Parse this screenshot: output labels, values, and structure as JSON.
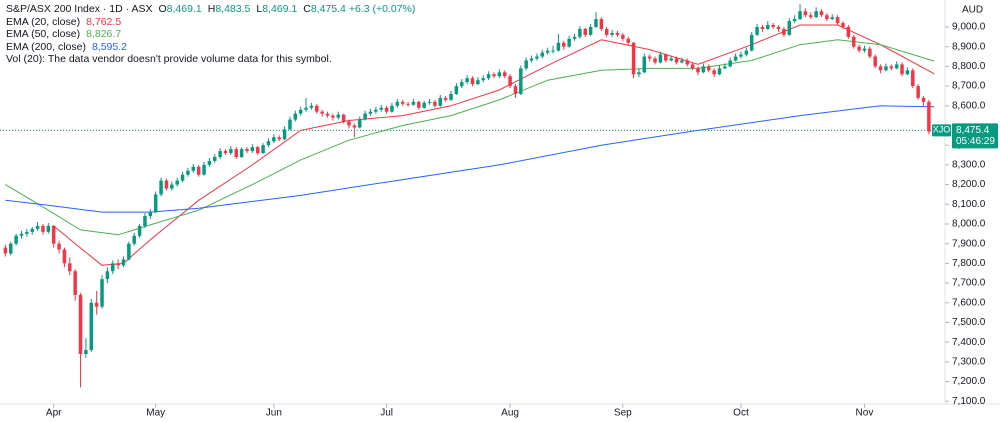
{
  "chart_data": {
    "type": "candlestick",
    "header": {
      "symbol": "S&P/ASX 200 Index · 1D · ASX",
      "ohlc": [
        {
          "key": "O",
          "value": "8,469.1"
        },
        {
          "key": "H",
          "value": "8,483.5"
        },
        {
          "key": "L",
          "value": "8,469.1"
        },
        {
          "key": "C",
          "value": "8,475.4"
        }
      ],
      "change": "+6.3 (+0.07%)"
    },
    "volume_note": "Vol (20): The data vendor doesn't provide volume data for this symbol.",
    "currency": "AUD",
    "symbol_tag": "XJO",
    "price_label": "8,475.4",
    "countdown": "05:46:29",
    "up_color": "#089981",
    "down_color": "#f23645",
    "ohlc": [
      [
        7880,
        7895,
        7835,
        7850
      ],
      [
        7850,
        7910,
        7840,
        7900
      ],
      [
        7900,
        7950,
        7890,
        7940
      ],
      [
        7940,
        7965,
        7925,
        7950
      ],
      [
        7950,
        7975,
        7935,
        7960
      ],
      [
        7960,
        7985,
        7945,
        7975
      ],
      [
        7975,
        8010,
        7965,
        7990
      ],
      [
        7990,
        8000,
        7945,
        7960
      ],
      [
        7960,
        8005,
        7950,
        7990
      ],
      [
        7990,
        7995,
        7880,
        7900
      ],
      [
        7900,
        7915,
        7850,
        7870
      ],
      [
        7870,
        7880,
        7780,
        7800
      ],
      [
        7800,
        7830,
        7740,
        7760
      ],
      [
        7760,
        7770,
        7610,
        7640
      ],
      [
        7640,
        7650,
        7170,
        7340
      ],
      [
        7340,
        7420,
        7320,
        7360
      ],
      [
        7360,
        7620,
        7350,
        7600
      ],
      [
        7600,
        7660,
        7540,
        7580
      ],
      [
        7580,
        7740,
        7570,
        7720
      ],
      [
        7720,
        7780,
        7700,
        7760
      ],
      [
        7760,
        7815,
        7745,
        7800
      ],
      [
        7800,
        7820,
        7770,
        7790
      ],
      [
        7790,
        7835,
        7780,
        7820
      ],
      [
        7820,
        7910,
        7815,
        7900
      ],
      [
        7900,
        7955,
        7890,
        7940
      ],
      [
        7940,
        8000,
        7930,
        7990
      ],
      [
        7990,
        8055,
        7980,
        8040
      ],
      [
        8040,
        8075,
        8025,
        8060
      ],
      [
        8060,
        8165,
        8055,
        8150
      ],
      [
        8150,
        8235,
        8140,
        8220
      ],
      [
        8220,
        8230,
        8170,
        8180
      ],
      [
        8180,
        8215,
        8170,
        8200
      ],
      [
        8200,
        8235,
        8190,
        8220
      ],
      [
        8220,
        8265,
        8210,
        8250
      ],
      [
        8250,
        8285,
        8240,
        8270
      ],
      [
        8270,
        8305,
        8260,
        8290
      ],
      [
        8290,
        8300,
        8240,
        8250
      ],
      [
        8250,
        8315,
        8245,
        8300
      ],
      [
        8300,
        8335,
        8290,
        8320
      ],
      [
        8320,
        8355,
        8310,
        8340
      ],
      [
        8340,
        8385,
        8330,
        8370
      ],
      [
        8370,
        8380,
        8350,
        8360
      ],
      [
        8360,
        8395,
        8350,
        8380
      ],
      [
        8380,
        8390,
        8330,
        8340
      ],
      [
        8340,
        8390,
        8335,
        8380
      ],
      [
        8380,
        8390,
        8360,
        8370
      ],
      [
        8370,
        8405,
        8360,
        8390
      ],
      [
        8390,
        8395,
        8350,
        8360
      ],
      [
        8360,
        8410,
        8355,
        8400
      ],
      [
        8400,
        8435,
        8390,
        8420
      ],
      [
        8420,
        8455,
        8410,
        8440
      ],
      [
        8440,
        8450,
        8420,
        8430
      ],
      [
        8430,
        8495,
        8425,
        8480
      ],
      [
        8480,
        8545,
        8475,
        8530
      ],
      [
        8530,
        8575,
        8520,
        8560
      ],
      [
        8560,
        8595,
        8550,
        8580
      ],
      [
        8580,
        8640,
        8570,
        8590
      ],
      [
        8590,
        8615,
        8580,
        8600
      ],
      [
        8600,
        8610,
        8560,
        8570
      ],
      [
        8570,
        8580,
        8545,
        8560
      ],
      [
        8560,
        8570,
        8540,
        8550
      ],
      [
        8550,
        8560,
        8525,
        8540
      ],
      [
        8540,
        8570,
        8530,
        8555
      ],
      [
        8555,
        8560,
        8510,
        8520
      ],
      [
        8520,
        8530,
        8485,
        8500
      ],
      [
        8500,
        8510,
        8440,
        8490
      ],
      [
        8490,
        8545,
        8485,
        8530
      ],
      [
        8530,
        8575,
        8525,
        8560
      ],
      [
        8560,
        8585,
        8550,
        8570
      ],
      [
        8570,
        8595,
        8560,
        8580
      ],
      [
        8580,
        8605,
        8570,
        8590
      ],
      [
        8590,
        8600,
        8560,
        8570
      ],
      [
        8570,
        8615,
        8565,
        8600
      ],
      [
        8600,
        8635,
        8590,
        8620
      ],
      [
        8620,
        8630,
        8600,
        8610
      ],
      [
        8610,
        8620,
        8595,
        8605
      ],
      [
        8605,
        8635,
        8600,
        8620
      ],
      [
        8620,
        8625,
        8580,
        8590
      ],
      [
        8590,
        8625,
        8585,
        8615
      ],
      [
        8615,
        8635,
        8605,
        8620
      ],
      [
        8620,
        8630,
        8590,
        8600
      ],
      [
        8600,
        8655,
        8595,
        8640
      ],
      [
        8640,
        8650,
        8620,
        8630
      ],
      [
        8630,
        8675,
        8625,
        8660
      ],
      [
        8660,
        8715,
        8655,
        8700
      ],
      [
        8700,
        8735,
        8690,
        8720
      ],
      [
        8720,
        8755,
        8710,
        8740
      ],
      [
        8740,
        8750,
        8700,
        8710
      ],
      [
        8710,
        8745,
        8705,
        8730
      ],
      [
        8730,
        8755,
        8720,
        8740
      ],
      [
        8740,
        8775,
        8730,
        8760
      ],
      [
        8760,
        8770,
        8740,
        8750
      ],
      [
        8750,
        8785,
        8740,
        8770
      ],
      [
        8770,
        8780,
        8740,
        8750
      ],
      [
        8750,
        8760,
        8690,
        8700
      ],
      [
        8700,
        8710,
        8640,
        8660
      ],
      [
        8660,
        8805,
        8655,
        8790
      ],
      [
        8790,
        8845,
        8780,
        8830
      ],
      [
        8830,
        8855,
        8820,
        8840
      ],
      [
        8840,
        8865,
        8830,
        8850
      ],
      [
        8850,
        8885,
        8840,
        8870
      ],
      [
        8870,
        8895,
        8860,
        8880
      ],
      [
        8880,
        8905,
        8865,
        8880
      ],
      [
        8880,
        8965,
        8875,
        8920
      ],
      [
        8920,
        8930,
        8885,
        8900
      ],
      [
        8900,
        8955,
        8895,
        8940
      ],
      [
        8940,
        8965,
        8930,
        8950
      ],
      [
        8950,
        9005,
        8940,
        8990
      ],
      [
        8990,
        8995,
        8950,
        8960
      ],
      [
        8960,
        9015,
        8955,
        9000
      ],
      [
        9000,
        9075,
        8995,
        9040
      ],
      [
        9040,
        9050,
        8980,
        8990
      ],
      [
        8990,
        9000,
        8950,
        8960
      ],
      [
        8960,
        8985,
        8950,
        8970
      ],
      [
        8970,
        8980,
        8950,
        8960
      ],
      [
        8960,
        8970,
        8930,
        8940
      ],
      [
        8940,
        8950,
        8910,
        8920
      ],
      [
        8920,
        8925,
        8740,
        8760
      ],
      [
        8760,
        8790,
        8745,
        8770
      ],
      [
        8770,
        8865,
        8765,
        8850
      ],
      [
        8850,
        8860,
        8825,
        8840
      ],
      [
        8840,
        8850,
        8810,
        8820
      ],
      [
        8820,
        8875,
        8815,
        8860
      ],
      [
        8860,
        8865,
        8820,
        8830
      ],
      [
        8830,
        8855,
        8825,
        8840
      ],
      [
        8840,
        8850,
        8810,
        8820
      ],
      [
        8820,
        8845,
        8815,
        8830
      ],
      [
        8830,
        8840,
        8800,
        8810
      ],
      [
        8810,
        8820,
        8780,
        8790
      ],
      [
        8790,
        8800,
        8755,
        8770
      ],
      [
        8770,
        8815,
        8765,
        8800
      ],
      [
        8800,
        8810,
        8770,
        8780
      ],
      [
        8780,
        8790,
        8745,
        8760
      ],
      [
        8760,
        8805,
        8755,
        8790
      ],
      [
        8790,
        8815,
        8785,
        8800
      ],
      [
        8800,
        8845,
        8795,
        8830
      ],
      [
        8830,
        8865,
        8825,
        8850
      ],
      [
        8850,
        8875,
        8840,
        8860
      ],
      [
        8860,
        8895,
        8850,
        8880
      ],
      [
        8880,
        8975,
        8875,
        8960
      ],
      [
        8960,
        9015,
        8955,
        9000
      ],
      [
        9000,
        9010,
        8975,
        8990
      ],
      [
        8990,
        9030,
        8985,
        9010
      ],
      [
        9010,
        9020,
        8990,
        9000
      ],
      [
        9000,
        9010,
        8975,
        8990
      ],
      [
        8990,
        9000,
        8950,
        8960
      ],
      [
        8960,
        9045,
        8955,
        9030
      ],
      [
        9030,
        9060,
        9020,
        9040
      ],
      [
        9040,
        9115,
        9035,
        9080
      ],
      [
        9080,
        9095,
        9050,
        9060
      ],
      [
        9060,
        9075,
        9040,
        9050
      ],
      [
        9050,
        9100,
        9045,
        9080
      ],
      [
        9080,
        9090,
        9050,
        9060
      ],
      [
        9060,
        9070,
        9030,
        9040
      ],
      [
        9040,
        9065,
        9035,
        9050
      ],
      [
        9050,
        9060,
        9010,
        9020
      ],
      [
        9020,
        9030,
        8990,
        9000
      ],
      [
        9000,
        9010,
        8940,
        8950
      ],
      [
        8950,
        8960,
        8890,
        8900
      ],
      [
        8900,
        8910,
        8870,
        8880
      ],
      [
        8880,
        8905,
        8870,
        8890
      ],
      [
        8890,
        8900,
        8840,
        8850
      ],
      [
        8850,
        8860,
        8790,
        8800
      ],
      [
        8800,
        8810,
        8765,
        8780
      ],
      [
        8780,
        8815,
        8775,
        8800
      ],
      [
        8800,
        8810,
        8780,
        8790
      ],
      [
        8790,
        8825,
        8785,
        8810
      ],
      [
        8810,
        8820,
        8750,
        8760
      ],
      [
        8760,
        8795,
        8755,
        8780
      ],
      [
        8780,
        8790,
        8690,
        8700
      ],
      [
        8700,
        8710,
        8630,
        8640
      ],
      [
        8640,
        8650,
        8600,
        8620
      ],
      [
        8620,
        8630,
        8455,
        8469.1
      ],
      [
        8469.1,
        8483.5,
        8469.1,
        8475.4
      ]
    ],
    "series": [
      {
        "name": "EMA (20, close)",
        "legend_value": "8,762.5",
        "color": "#f23645",
        "x": [
          9,
          13,
          18,
          22,
          27,
          36,
          46,
          55,
          64,
          74,
          83,
          92,
          101,
          111,
          120,
          129,
          139,
          148,
          155,
          163,
          173
        ],
        "values": [
          7990,
          7900,
          7790,
          7800,
          7920,
          8120,
          8300,
          8475,
          8525,
          8550,
          8600,
          8680,
          8805,
          8935,
          8885,
          8810,
          8910,
          9010,
          9010,
          8910,
          8762.5
        ]
      },
      {
        "name": "EMA (50, close)",
        "legend_value": "8,826.7",
        "color": "#4caf50",
        "x": [
          0,
          8,
          14,
          21,
          27,
          36,
          46,
          55,
          64,
          74,
          83,
          92,
          101,
          111,
          120,
          129,
          139,
          148,
          155,
          163,
          173
        ],
        "values": [
          8200,
          8070,
          7970,
          7945,
          7995,
          8070,
          8200,
          8325,
          8425,
          8500,
          8550,
          8630,
          8730,
          8780,
          8790,
          8790,
          8830,
          8910,
          8935,
          8910,
          8826.7
        ]
      },
      {
        "name": "EMA (200, close)",
        "legend_value": "8,595.2",
        "color": "#2962ff",
        "x": [
          0,
          8,
          18,
          27,
          36,
          55,
          74,
          92,
          111,
          129,
          148,
          163,
          173
        ],
        "values": [
          8120,
          8095,
          8060,
          8060,
          8080,
          8145,
          8225,
          8300,
          8400,
          8475,
          8550,
          8600,
          8595.2
        ]
      }
    ],
    "xlim": [
      -1,
      175
    ],
    "xticks": [
      {
        "value": 9,
        "label": "Apr"
      },
      {
        "value": 28,
        "label": "May"
      },
      {
        "value": 50,
        "label": "Jun"
      },
      {
        "value": 71,
        "label": "Jul"
      },
      {
        "value": 94,
        "label": "Aug"
      },
      {
        "value": 115,
        "label": "Sep"
      },
      {
        "value": 137,
        "label": "Oct"
      },
      {
        "value": 160,
        "label": "Nov"
      }
    ],
    "ylim": [
      7086,
      9137
    ],
    "yticks": [
      {
        "value": 9000,
        "label": "9,000.0"
      },
      {
        "value": 8900,
        "label": "8,900.0"
      },
      {
        "value": 8800,
        "label": "8,800.0"
      },
      {
        "value": 8700,
        "label": "8,700.0"
      },
      {
        "value": 8600,
        "label": "8,600.0"
      },
      {
        "value": 8400,
        "label": "8,400.0"
      },
      {
        "value": 8300,
        "label": "8,300.0"
      },
      {
        "value": 8200,
        "label": "8,200.0"
      },
      {
        "value": 8100,
        "label": "8,100.0"
      },
      {
        "value": 8000,
        "label": "8,000.0"
      },
      {
        "value": 7900,
        "label": "7,900.0"
      },
      {
        "value": 7800,
        "label": "7,800.0"
      },
      {
        "value": 7700,
        "label": "7,700.0"
      },
      {
        "value": 7600,
        "label": "7,600.0"
      },
      {
        "value": 7500,
        "label": "7,500.0"
      },
      {
        "value": 7400,
        "label": "7,400.0"
      },
      {
        "value": 7300,
        "label": "7,300.0"
      },
      {
        "value": 7200,
        "label": "7,200.0"
      },
      {
        "value": 7100,
        "label": "7,100.0"
      }
    ]
  }
}
